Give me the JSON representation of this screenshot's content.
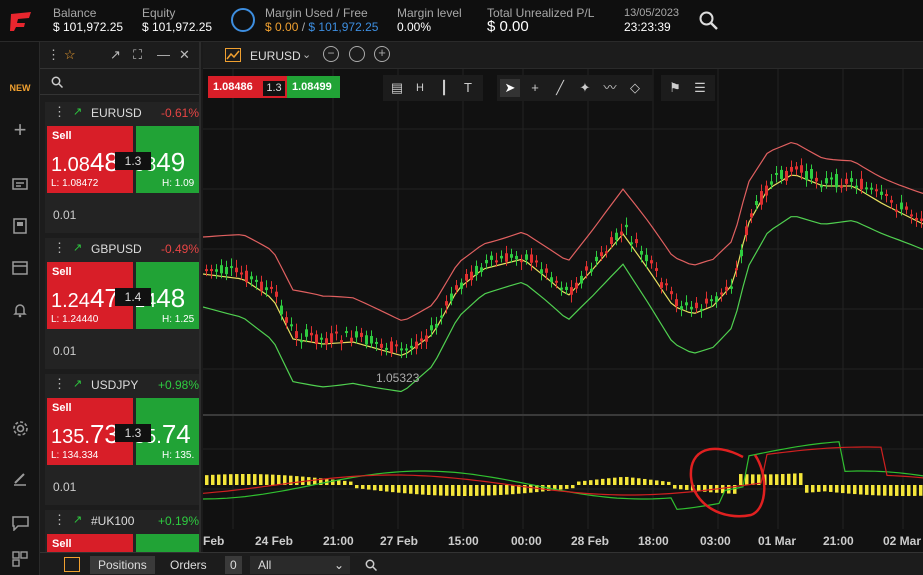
{
  "header": {
    "balance": {
      "label": "Balance",
      "value": "$ 101,972.25"
    },
    "equity": {
      "label": "Equity",
      "value": "$ 101,972.25"
    },
    "margin": {
      "label": "Margin Used / Free",
      "used": "$ 0.00",
      "sep": " / ",
      "free": "$ 101,972.25"
    },
    "margin_level": {
      "label": "Margin level",
      "value": "0.00%"
    },
    "unrealized": {
      "label": "Total Unrealized P/L",
      "value": "$ 0.00"
    },
    "date": "13/05/2023",
    "time": "23:23:39"
  },
  "sidenav": {
    "new_badge": "NEW"
  },
  "watchlist": {
    "cards": [
      {
        "symbol": "EURUSD",
        "change": "-0.61%",
        "sell_label": "Sell",
        "sell_price_main": "1.08",
        "sell_price_big": "48",
        "spread": "1.3",
        "buy_price_main": "08",
        "buy_price_big": "49",
        "low": "L: 1.08472",
        "high": "H: 1.09",
        "qty": "0.01"
      },
      {
        "symbol": "GBPUSD",
        "change": "-0.49%",
        "sell_label": "Sell",
        "sell_price_main": "1.24",
        "sell_price_big": "47",
        "spread": "1.4",
        "buy_price_main": "24",
        "buy_price_big": "48",
        "low": "L: 1.24440",
        "high": "H: 1.25",
        "qty": "0.01"
      },
      {
        "symbol": "USDJPY",
        "change": "+0.98%",
        "sell_label": "Sell",
        "sell_price_main": "135.",
        "sell_price_big": "73",
        "spread": "1.3",
        "buy_price_main": "35.",
        "buy_price_big": "74",
        "low": "L: 134.334",
        "high": "H: 135.",
        "qty": "0.01"
      },
      {
        "symbol": "#UK100",
        "change": "+0.19%",
        "sell_label": "Sell"
      }
    ],
    "colors": {
      "sell": "#d81e28",
      "buy": "#21a336",
      "neg": "#e84545",
      "pos": "#2ecc40"
    }
  },
  "chart_header": {
    "symbol": "EURUSD"
  },
  "quote": {
    "sell": "1.08486",
    "spread": "1.3",
    "buy": "1.08499"
  },
  "chart": {
    "low_label": "1.05323",
    "x_labels": [
      "Feb",
      "24 Feb",
      "21:00",
      "27 Feb",
      "15:00",
      "00:00",
      "28 Feb",
      "18:00",
      "03:00",
      "01 Mar",
      "21:00",
      "02 Mar"
    ]
  },
  "bottom": {
    "positions": "Positions",
    "orders": "Orders",
    "orders_count": "0",
    "filter": "All"
  }
}
